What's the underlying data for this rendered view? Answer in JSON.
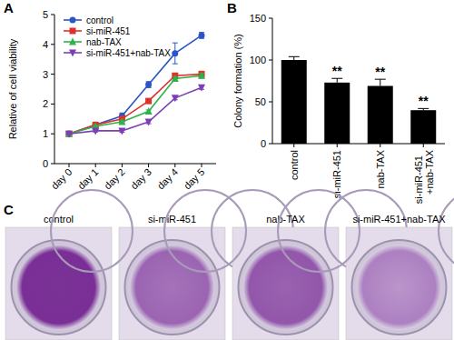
{
  "chart_data": [
    {
      "type": "line",
      "title": "A",
      "ylabel": "Relative of cell viability",
      "categories": [
        "day 0",
        "day 1",
        "day 2",
        "day 3",
        "day 4",
        "day 5"
      ],
      "ylim": [
        0,
        5
      ],
      "yticks": [
        0,
        1,
        2,
        3,
        4,
        5
      ],
      "legend": "upper-left",
      "series": [
        {
          "name": "control",
          "color": "#2a55c8",
          "marker": "circle",
          "values": [
            1,
            1.3,
            1.6,
            2.65,
            3.7,
            4.3
          ],
          "errors": [
            0.03,
            0.05,
            0.1,
            0.1,
            0.35,
            0.1
          ]
        },
        {
          "name": "si-miR-451",
          "color": "#e0302a",
          "marker": "square",
          "values": [
            1,
            1.3,
            1.5,
            2.1,
            2.95,
            3.0
          ],
          "errors": [
            0.03,
            0.05,
            0.05,
            0.05,
            0.08,
            0.1
          ]
        },
        {
          "name": "nab-TAX",
          "color": "#2db34a",
          "marker": "triangle",
          "values": [
            1,
            1.25,
            1.4,
            1.75,
            2.85,
            2.95
          ],
          "errors": [
            0.03,
            0.04,
            0.05,
            0.05,
            0.06,
            0.08
          ]
        },
        {
          "name": "si-miR-451+nab-TAX",
          "color": "#7b3fb5",
          "marker": "triangle-down",
          "values": [
            1,
            1.1,
            1.1,
            1.4,
            2.2,
            2.55
          ],
          "errors": [
            0.03,
            0.04,
            0.05,
            0.06,
            0.06,
            0.06
          ]
        }
      ]
    },
    {
      "type": "bar",
      "title": "B",
      "ylabel": "Colony formation (%)",
      "categories": [
        "control",
        "si-miR-451",
        "nab-TAX",
        "si-miR-451+nab-TAX"
      ],
      "values": [
        100,
        73,
        69,
        40
      ],
      "errors": [
        4,
        5,
        8,
        2
      ],
      "color": "#000000",
      "ylim": [
        0,
        150
      ],
      "yticks": [
        0,
        50,
        100,
        150
      ],
      "annotations": [
        {
          "category": "si-miR-451",
          "text": "**"
        },
        {
          "category": "nab-TAX",
          "text": "**"
        },
        {
          "category": "si-miR-451+nab-TAX",
          "text": "**"
        }
      ]
    }
  ],
  "panel_c": {
    "label": "C",
    "images": [
      "control",
      "si-miR-451",
      "nab-TAX",
      "si-miR-451+nab-TAX"
    ]
  }
}
